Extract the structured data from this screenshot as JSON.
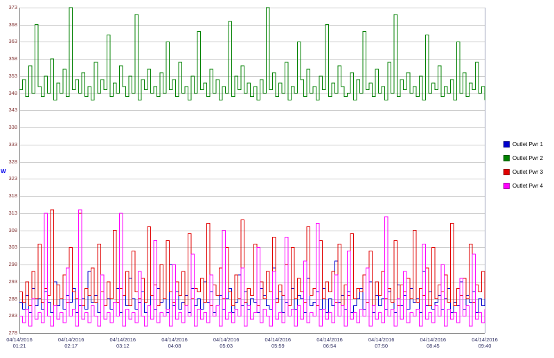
{
  "chart_data": {
    "type": "line",
    "interpolation": "step-after",
    "title": "",
    "xlabel": "",
    "ylabel": "W",
    "ylim": [
      278,
      373
    ],
    "grid": "horizontal",
    "legend_position": "right",
    "yticks": [
      278,
      283,
      288,
      293,
      298,
      303,
      308,
      313,
      318,
      323,
      328,
      333,
      338,
      343,
      348,
      353,
      358,
      363,
      368,
      373
    ],
    "x_tick_labels": [
      {
        "date": "04/14/2016",
        "time": "01:21"
      },
      {
        "date": "04/14/2016",
        "time": "02:17"
      },
      {
        "date": "04/14/2016",
        "time": "03:12"
      },
      {
        "date": "04/14/2016",
        "time": "04:08"
      },
      {
        "date": "04/14/2016",
        "time": "05:03"
      },
      {
        "date": "04/14/2016",
        "time": "05:59"
      },
      {
        "date": "04/14/2016",
        "time": "06:54"
      },
      {
        "date": "04/14/2016",
        "time": "07:50"
      },
      {
        "date": "04/14/2016",
        "time": "08:45"
      },
      {
        "date": "04/14/2016",
        "time": "09:40"
      }
    ],
    "series": [
      {
        "name": "Outlet Pwr 1",
        "color": "#0000cc",
        "values": [
          287,
          285,
          289,
          284,
          291,
          286,
          288,
          285,
          290,
          287,
          284,
          293,
          286,
          288,
          285,
          289,
          287,
          291,
          284,
          286,
          288,
          285,
          296,
          287,
          289,
          284,
          290,
          286,
          288,
          285,
          287,
          291,
          284,
          289,
          286,
          294,
          288,
          285,
          287,
          290,
          284,
          286,
          289,
          285,
          291,
          287,
          288,
          284,
          298,
          286,
          290,
          285,
          287,
          289,
          284,
          291,
          286,
          288,
          285,
          293,
          287,
          290,
          284,
          286,
          289,
          285,
          288,
          291,
          284,
          287,
          295,
          286,
          290,
          285,
          288,
          287,
          284,
          291,
          289,
          286,
          285,
          297,
          288,
          290,
          284,
          287,
          286,
          291,
          285,
          289,
          288,
          284,
          294,
          286,
          287,
          290,
          285,
          291,
          284,
          288,
          286,
          299,
          287,
          289,
          285,
          290,
          284,
          286,
          288,
          291,
          285,
          287,
          293,
          284,
          289,
          286,
          288,
          285,
          290,
          287,
          284,
          292,
          286,
          289,
          285,
          291,
          287,
          288,
          284,
          296,
          286,
          290,
          285,
          287,
          289,
          285,
          288,
          291,
          284,
          287,
          286,
          293,
          285,
          289,
          287,
          290,
          284,
          288,
          286,
          291
        ]
      },
      {
        "name": "Outlet Pwr 2",
        "color": "#008000",
        "values": [
          349,
          352,
          347,
          356,
          348,
          368,
          350,
          347,
          353,
          348,
          358,
          346,
          351,
          348,
          355,
          347,
          373,
          349,
          352,
          348,
          354,
          347,
          350,
          346,
          357,
          348,
          352,
          349,
          365,
          347,
          351,
          348,
          356,
          350,
          347,
          353,
          348,
          371,
          346,
          352,
          349,
          355,
          348,
          350,
          347,
          354,
          348,
          363,
          349,
          352,
          347,
          357,
          348,
          350,
          346,
          353,
          348,
          366,
          349,
          351,
          347,
          355,
          348,
          352,
          346,
          350,
          348,
          369,
          347,
          353,
          349,
          356,
          348,
          351,
          347,
          350,
          346,
          352,
          348,
          373,
          349,
          354,
          347,
          351,
          348,
          357,
          346,
          350,
          348,
          363,
          352,
          347,
          355,
          348,
          350,
          346,
          353,
          349,
          368,
          347,
          351,
          348,
          356,
          350,
          347,
          348,
          354,
          346,
          352,
          348,
          366,
          349,
          351,
          347,
          355,
          348,
          350,
          346,
          357,
          348,
          371,
          347,
          352,
          349,
          354,
          348,
          350,
          347,
          353,
          346,
          365,
          348,
          351,
          349,
          356,
          347,
          350,
          348,
          352,
          346,
          363,
          348,
          354,
          347,
          351,
          349,
          357,
          348,
          350,
          346
        ]
      },
      {
        "name": "Outlet Pwr 3",
        "color": "#e00000",
        "values": [
          290,
          287,
          293,
          286,
          296,
          288,
          304,
          287,
          291,
          289,
          314,
          286,
          292,
          288,
          295,
          287,
          303,
          290,
          288,
          313,
          286,
          291,
          289,
          297,
          287,
          304,
          290,
          286,
          293,
          288,
          308,
          287,
          291,
          289,
          296,
          286,
          302,
          290,
          288,
          294,
          287,
          309,
          289,
          292,
          286,
          298,
          288,
          305,
          290,
          287,
          293,
          289,
          296,
          286,
          307,
          288,
          291,
          290,
          294,
          287,
          310,
          286,
          292,
          289,
          297,
          288,
          303,
          290,
          286,
          295,
          288,
          311,
          287,
          291,
          289,
          304,
          286,
          293,
          288,
          296,
          290,
          306,
          287,
          292,
          289,
          298,
          286,
          303,
          288,
          294,
          290,
          287,
          309,
          289,
          291,
          286,
          305,
          288,
          293,
          290,
          296,
          287,
          304,
          286,
          292,
          289,
          307,
          288,
          291,
          290,
          295,
          287,
          302,
          286,
          293,
          289,
          296,
          288,
          291,
          287,
          305,
          286,
          292,
          290,
          294,
          288,
          308,
          287,
          291,
          289,
          297,
          286,
          303,
          288,
          292,
          290,
          295,
          287,
          310,
          286,
          291,
          289,
          294,
          288,
          304,
          287,
          292,
          290,
          296,
          288
        ]
      },
      {
        "name": "Outlet Pwr 4",
        "color": "#ff00ff",
        "values": [
          283,
          281,
          285,
          280,
          288,
          282,
          284,
          281,
          313,
          283,
          280,
          286,
          282,
          284,
          281,
          297,
          283,
          285,
          280,
          314,
          282,
          284,
          281,
          286,
          283,
          280,
          295,
          282,
          284,
          281,
          287,
          283,
          313,
          280,
          285,
          282,
          284,
          281,
          296,
          283,
          280,
          286,
          282,
          305,
          281,
          284,
          283,
          285,
          280,
          298,
          282,
          284,
          281,
          286,
          283,
          301,
          280,
          285,
          282,
          284,
          281,
          295,
          283,
          286,
          280,
          308,
          282,
          284,
          281,
          285,
          283,
          297,
          280,
          286,
          282,
          284,
          303,
          281,
          285,
          283,
          280,
          296,
          282,
          284,
          281,
          306,
          283,
          285,
          280,
          286,
          282,
          299,
          281,
          284,
          283,
          310,
          280,
          285,
          282,
          284,
          281,
          295,
          283,
          286,
          280,
          302,
          282,
          284,
          281,
          285,
          283,
          297,
          280,
          286,
          282,
          284,
          281,
          312,
          283,
          285,
          280,
          288,
          282,
          296,
          281,
          284,
          283,
          285,
          280,
          304,
          282,
          284,
          281,
          286,
          283,
          298,
          280,
          285,
          282,
          284,
          281,
          294,
          283,
          286,
          280,
          301,
          282,
          284,
          281,
          285
        ]
      }
    ]
  },
  "axis_colors": {
    "y_tick": "#823434",
    "x_tick": "#333366",
    "y_title": "#0000ee",
    "gridline": "#cccccc",
    "axis_line": "#8a8a8a",
    "right_border": "#9aa0b8"
  }
}
